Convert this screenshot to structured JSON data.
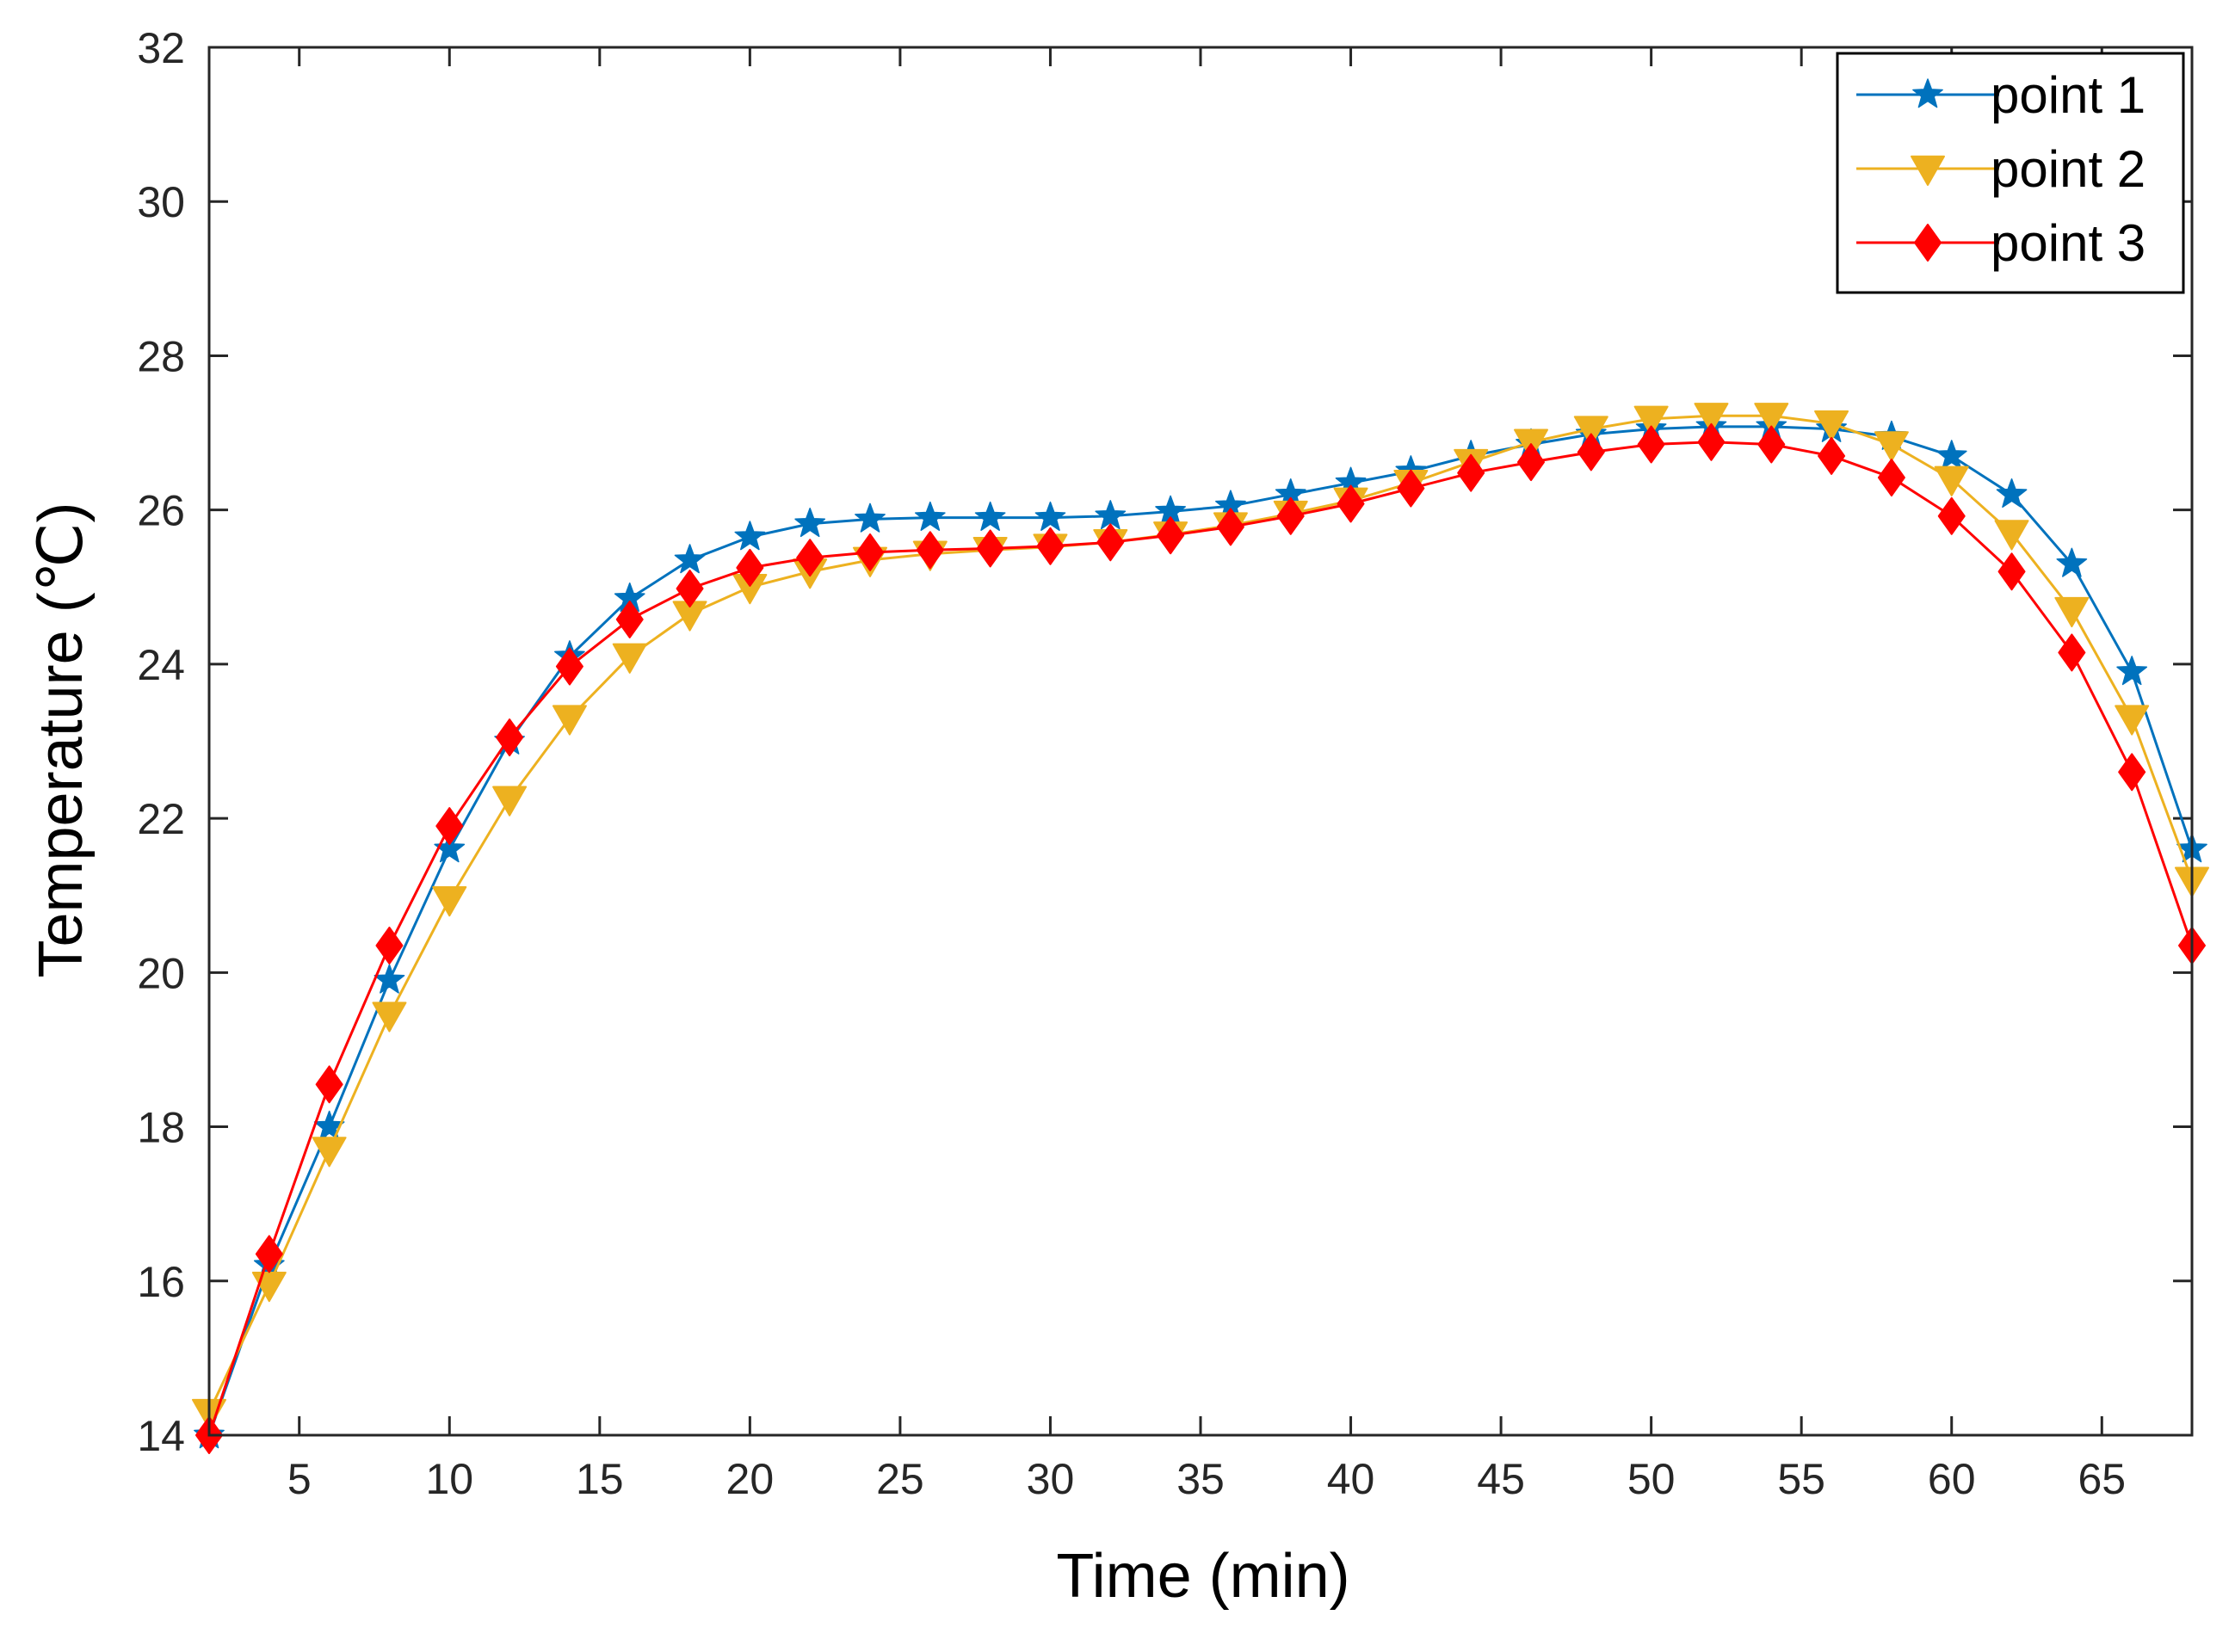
{
  "chart_data": {
    "type": "line",
    "title": "",
    "xlabel": "Time (min)",
    "ylabel": "Temperature (℃)",
    "xlim": [
      2,
      68
    ],
    "ylim": [
      14,
      32
    ],
    "xticks": [
      5,
      10,
      15,
      20,
      25,
      30,
      35,
      40,
      45,
      50,
      55,
      60,
      65
    ],
    "yticks": [
      14,
      16,
      18,
      20,
      22,
      24,
      26,
      28,
      30,
      32
    ],
    "grid": false,
    "legend_position": "top-right",
    "x": [
      2,
      4,
      6,
      8,
      10,
      12,
      14,
      16,
      18,
      20,
      22,
      24,
      26,
      28,
      30,
      32,
      34,
      36,
      38,
      40,
      42,
      44,
      46,
      48,
      50,
      52,
      54,
      56,
      58,
      60,
      62,
      64,
      66,
      68
    ],
    "series": [
      {
        "name": "point 1",
        "color": "#0072BD",
        "marker": "star",
        "values": [
          14.0,
          16.2,
          18.0,
          19.9,
          21.6,
          23.0,
          24.1,
          24.85,
          25.35,
          25.65,
          25.82,
          25.88,
          25.9,
          25.9,
          25.9,
          25.92,
          25.98,
          26.05,
          26.2,
          26.35,
          26.5,
          26.7,
          26.85,
          26.98,
          27.05,
          27.08,
          27.08,
          27.05,
          26.95,
          26.7,
          26.2,
          25.3,
          23.9,
          21.6
        ]
      },
      {
        "name": "point 2",
        "color": "#EDB120",
        "marker": "triangle-down",
        "values": [
          14.3,
          15.95,
          17.7,
          19.45,
          20.95,
          22.25,
          23.3,
          24.1,
          24.65,
          25.0,
          25.2,
          25.35,
          25.43,
          25.48,
          25.52,
          25.58,
          25.68,
          25.8,
          25.95,
          26.12,
          26.35,
          26.62,
          26.88,
          27.05,
          27.18,
          27.22,
          27.22,
          27.12,
          26.85,
          26.4,
          25.7,
          24.7,
          23.3,
          21.2
        ]
      },
      {
        "name": "point 3",
        "color": "#FF0000",
        "marker": "diamond",
        "values": [
          14.0,
          16.35,
          18.55,
          20.35,
          21.9,
          23.05,
          23.97,
          24.58,
          24.98,
          25.25,
          25.38,
          25.45,
          25.48,
          25.5,
          25.53,
          25.58,
          25.67,
          25.78,
          25.92,
          26.08,
          26.28,
          26.48,
          26.62,
          26.75,
          26.85,
          26.88,
          26.85,
          26.7,
          26.42,
          25.92,
          25.2,
          24.15,
          22.6,
          20.35
        ]
      }
    ]
  }
}
